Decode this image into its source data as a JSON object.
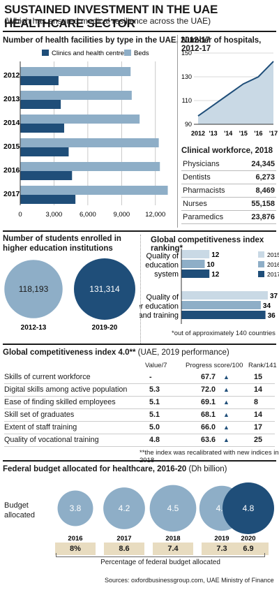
{
  "title": "SUSTAINED INVESTMENT IN THE UAE HEALTHCARE SECTOR",
  "subtitle": "(Which has ensured medical resilience across the UAE)",
  "colors": {
    "dark": "#1f4e79",
    "light": "#8eaec7",
    "pale": "#c9d9e5",
    "tan": "#e8dcc0"
  },
  "facilities": {
    "heading": "Number of health facilities by type in the UAE, 2012-17",
    "legend": [
      "Clinics and health centres",
      "Beds"
    ]
  },
  "hospitals": {
    "heading": "Number of hospitals, 2012-17"
  },
  "workforce": {
    "heading": "Clinical workforce, 2018",
    "rows": [
      {
        "label": "Physicians",
        "value": "24,345"
      },
      {
        "label": "Dentists",
        "value": "6,273"
      },
      {
        "label": "Pharmacists",
        "value": "8,469"
      },
      {
        "label": "Nurses",
        "value": "55,158"
      },
      {
        "label": "Paramedics",
        "value": "23,876"
      }
    ]
  },
  "students": {
    "heading_1": "Number of students enrolled in",
    "heading_2": "higher education institutions"
  },
  "gci_ranking": {
    "heading": "Global competitiveness index ranking*",
    "group1": [
      "Quality of",
      "education",
      "system"
    ],
    "group2": [
      "Quality of",
      "higher education",
      "and training"
    ],
    "legend": [
      "2015",
      "2016",
      "2017"
    ],
    "footnote": "*out of approximately 140 countries"
  },
  "gci4": {
    "heading_bold": "Global competitiveness index 4.0**",
    "heading_rest": " (UAE, 2019 performance)",
    "columns": [
      "Value/7",
      "Progress score/100",
      "Rank/141"
    ],
    "rows": [
      {
        "label": "Skills of current workforce",
        "value": "-",
        "score": "67.7",
        "rank": "15"
      },
      {
        "label": "Digital skills among active population",
        "value": "5.3",
        "score": "72.0",
        "rank": "14"
      },
      {
        "label": "Ease of finding skilled employees",
        "value": "5.1",
        "score": "69.1",
        "rank": "8"
      },
      {
        "label": "Skill set of graduates",
        "value": "5.1",
        "score": "68.1",
        "rank": "14"
      },
      {
        "label": "Extent of staff training",
        "value": "5.0",
        "score": "66.0",
        "rank": "17"
      },
      {
        "label": "Quality of vocational training",
        "value": "4.8",
        "score": "63.6",
        "rank": "25"
      }
    ],
    "arrow": "▲",
    "footnote": "**the index was recalibrated with new indices in 2018"
  },
  "budget": {
    "heading_bold": "Federal budget allocated for healthcare, 2016-20",
    "heading_rest": " (Dh billion)",
    "row_label_1": "Budget",
    "row_label_2": "allocated",
    "pct_caption": "Percentage of federal budget allocated"
  },
  "sources": "Sources: oxfordbusinessgroup.com, UAE Ministry of Finance",
  "chart_data": [
    {
      "type": "bar",
      "orientation": "horizontal",
      "categories": [
        "2012",
        "2013",
        "2014",
        "2015",
        "2016",
        "2017"
      ],
      "series": [
        {
          "name": "Clinics and health centres",
          "values": [
            3400,
            3600,
            3900,
            4300,
            4600,
            4900
          ]
        },
        {
          "name": "Beds",
          "values": [
            9800,
            9900,
            10600,
            12300,
            12400,
            13100
          ]
        }
      ],
      "xticks": [
        "0",
        "3,000",
        "6,000",
        "9,000",
        "12,000"
      ],
      "xlim": [
        0,
        13500
      ],
      "grid": true
    },
    {
      "type": "area",
      "x": [
        "2012",
        "'13",
        "'14",
        "'15",
        "'16",
        "'17"
      ],
      "values": [
        97,
        106,
        115,
        124,
        130,
        143
      ],
      "yticks": [
        "90",
        "110",
        "130",
        "150"
      ],
      "ylim": [
        90,
        150
      ]
    },
    {
      "type": "bubble",
      "categories": [
        "2012-13",
        "2019-20"
      ],
      "values": [
        118193,
        131314
      ],
      "labels": [
        "118,193",
        "131,314"
      ]
    },
    {
      "type": "bar",
      "orientation": "horizontal",
      "groups": [
        "Quality of education system",
        "Quality of higher education and training"
      ],
      "series": [
        {
          "name": "2015",
          "values": [
            12,
            37
          ]
        },
        {
          "name": "2016",
          "values": [
            10,
            34
          ]
        },
        {
          "name": "2017",
          "values": [
            12,
            36
          ]
        }
      ],
      "xlim": [
        0,
        40
      ]
    },
    {
      "type": "bubble",
      "categories": [
        "2016",
        "2017",
        "2018",
        "2019",
        "2020"
      ],
      "values": [
        3.8,
        4.2,
        4.5,
        4.4,
        4.8
      ],
      "labels": [
        "3.8",
        "4.2",
        "4.5",
        "4.4",
        "4.8"
      ],
      "percent_of_budget": [
        "8%",
        "8.6",
        "7.4",
        "7.3",
        "6.9"
      ]
    }
  ]
}
